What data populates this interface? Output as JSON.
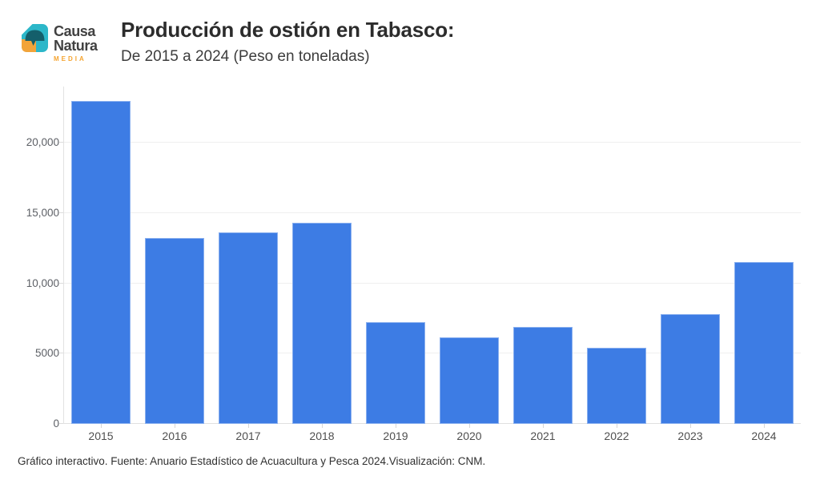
{
  "logo": {
    "name_line1": "Causa",
    "name_line2": "Natura",
    "tagline": "MEDIA"
  },
  "header": {
    "title": "Producción de ostión en Tabasco:",
    "subtitle": "De 2015 a 2024 (Peso en toneladas)"
  },
  "footer": {
    "note": "Gráfico interactivo. Fuente: Anuario Estadístico de Acuacultura y Pesca 2024.Visualización: CNM."
  },
  "colors": {
    "bar": "#3d7ce4",
    "logo_teal": "#2cb7c9",
    "logo_dark_teal": "#145f6b",
    "logo_orange": "#f2a43a",
    "gridline": "#efefef",
    "axis_line": "#e2e2e2",
    "tick_label": "#5d6066"
  },
  "chart_data": {
    "type": "bar",
    "title": "Producción de ostión en Tabasco:",
    "subtitle": "De 2015 a 2024 (Peso en toneladas)",
    "unit": "toneladas",
    "categories": [
      "2015",
      "2016",
      "2017",
      "2018",
      "2019",
      "2020",
      "2021",
      "2022",
      "2023",
      "2024"
    ],
    "values": [
      23000,
      13200,
      13600,
      14300,
      7250,
      6150,
      6900,
      5400,
      7800,
      11500
    ],
    "ylim": [
      0,
      24000
    ],
    "yticks": [
      {
        "value": 0,
        "label": "0"
      },
      {
        "value": 5000,
        "label": "5000"
      },
      {
        "value": 10000,
        "label": "10,000"
      },
      {
        "value": 15000,
        "label": "15,000"
      },
      {
        "value": 20000,
        "label": "20,000"
      }
    ],
    "grid": true,
    "legend": false,
    "bar_color": "#3d7ce4"
  }
}
